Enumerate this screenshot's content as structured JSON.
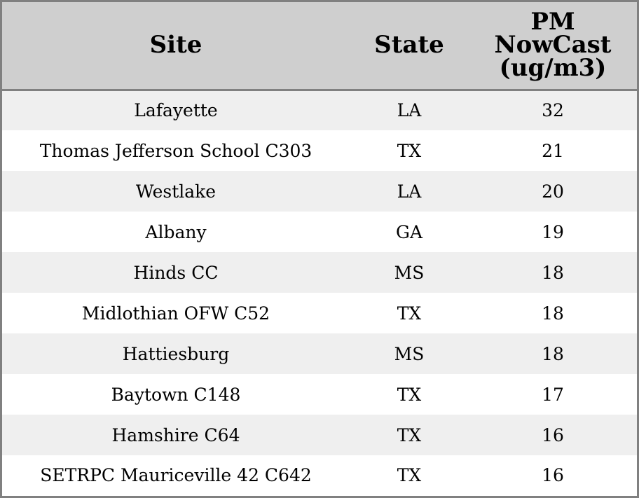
{
  "chart_data": {
    "type": "table",
    "columns": [
      {
        "lines": [
          "Site"
        ]
      },
      {
        "lines": [
          "State"
        ]
      },
      {
        "lines": [
          "PM",
          "NowCast",
          "(ug/m3)"
        ]
      }
    ],
    "rows": [
      [
        "Lafayette",
        "LA",
        "32"
      ],
      [
        "Thomas Jefferson School C303",
        "TX",
        "21"
      ],
      [
        "Westlake",
        "LA",
        "20"
      ],
      [
        "Albany",
        "GA",
        "19"
      ],
      [
        "Hinds CC",
        "MS",
        "18"
      ],
      [
        "Midlothian OFW C52",
        "TX",
        "18"
      ],
      [
        "Hattiesburg",
        "MS",
        "18"
      ],
      [
        "Baytown C148",
        "TX",
        "17"
      ],
      [
        "Hamshire C64",
        "TX",
        "16"
      ],
      [
        "SETRPC Mauriceville 42 C642",
        "TX",
        "16"
      ]
    ]
  },
  "colors": {
    "header_bg": "#cfcfcf",
    "stripe_bg": "#efefef",
    "row_bg": "#ffffff",
    "border": "#808080"
  }
}
